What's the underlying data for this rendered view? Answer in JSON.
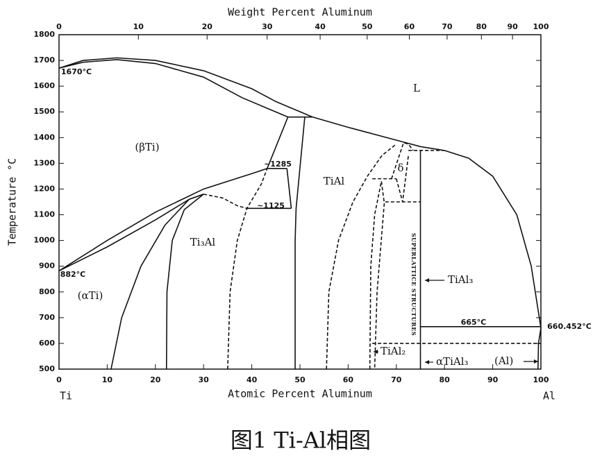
{
  "chart_data": {
    "type": "line",
    "xlabel": "Atomic Percent Aluminum",
    "x2label": "Weight Percent Aluminum",
    "ylabel": "Temperature °C",
    "caption": "图1 Ti-Al相图",
    "left_label": "Ti",
    "right_label": "Al",
    "color": "#111111",
    "xlim": [
      0,
      100
    ],
    "ylim": [
      500,
      1800
    ],
    "xticks": [
      0,
      10,
      20,
      30,
      40,
      50,
      60,
      70,
      80,
      90,
      100
    ],
    "yticks": [
      500,
      600,
      700,
      800,
      900,
      1000,
      1100,
      1200,
      1300,
      1400,
      1500,
      1600,
      1700,
      1800
    ],
    "x2ticks": [
      {
        "value": 0,
        "label": "0"
      },
      {
        "value": 16.47,
        "label": "10"
      },
      {
        "value": 30.73,
        "label": "20"
      },
      {
        "value": 43.19,
        "label": "30"
      },
      {
        "value": 54.19,
        "label": "40"
      },
      {
        "value": 63.95,
        "label": "50"
      },
      {
        "value": 72.69,
        "label": "60"
      },
      {
        "value": 80.54,
        "label": "70"
      },
      {
        "value": 87.65,
        "label": "80"
      },
      {
        "value": 94.11,
        "label": "90"
      },
      {
        "value": 100,
        "label": "100"
      }
    ],
    "annotations": [
      "L",
      "(βTi)",
      "Ti₃Al",
      "TiAl",
      "(αTi)",
      "1670°C",
      "882°C",
      "~1285",
      "~1125",
      "δ",
      "SUPERLATTICE STRUCTURES",
      "TiAl₃",
      "665°C",
      "660.452°C",
      "TiAl₂",
      "αTiAl₃",
      "(Al)"
    ],
    "series": [
      {
        "x": [
          0,
          5,
          12,
          20,
          30,
          40,
          45,
          52.6
        ],
        "values": [
          1670,
          1700,
          1710,
          1700,
          1660,
          1590,
          1540,
          1480
        ],
        "dash": false
      },
      {
        "x": [
          0,
          5,
          12,
          20,
          30,
          38,
          47.5
        ],
        "values": [
          1670,
          1693,
          1703,
          1688,
          1635,
          1555,
          1480
        ],
        "dash": false
      },
      {
        "x": [
          52.6,
          60,
          70,
          75,
          80,
          85,
          90,
          95,
          98,
          100
        ],
        "values": [
          1480,
          1440,
          1390,
          1365,
          1350,
          1320,
          1250,
          1100,
          900,
          660
        ],
        "dash": false
      },
      {
        "x": [
          47.5,
          52.6
        ],
        "values": [
          1480,
          1480
        ],
        "dash": false
      },
      {
        "x": [
          0,
          10,
          20,
          30,
          40,
          43.2
        ],
        "values": [
          882,
          1000,
          1110,
          1200,
          1260,
          1280
        ],
        "dash": false
      },
      {
        "x": [
          0,
          10,
          20,
          27,
          30
        ],
        "values": [
          882,
          975,
          1080,
          1160,
          1180
        ],
        "dash": false
      },
      {
        "x": [
          43.2,
          47.5
        ],
        "values": [
          1280,
          1480
        ],
        "dash": false
      },
      {
        "x": [
          43.2,
          47.3
        ],
        "values": [
          1280,
          1280
        ],
        "dash": false
      },
      {
        "x": [
          49,
          49,
          49.2,
          51
        ],
        "values": [
          500,
          1000,
          1125,
          1480
        ],
        "dash": false
      },
      {
        "x": [
          39,
          48.2
        ],
        "values": [
          1125,
          1125
        ],
        "dash": false
      },
      {
        "x": [
          48.2,
          47.3
        ],
        "values": [
          1125,
          1280
        ],
        "dash": false
      },
      {
        "x": [
          10.8,
          13,
          17,
          22,
          27,
          30
        ],
        "values": [
          500,
          700,
          900,
          1060,
          1160,
          1180
        ],
        "dash": false
      },
      {
        "x": [
          22.3,
          22.4,
          23.5,
          26,
          30
        ],
        "values": [
          500,
          800,
          1000,
          1120,
          1180
        ],
        "dash": false
      },
      {
        "x": [
          30,
          34,
          37,
          39
        ],
        "values": [
          1180,
          1165,
          1135,
          1125
        ],
        "dash": true
      },
      {
        "x": [
          35,
          35.5,
          37,
          39,
          42,
          43.2
        ],
        "values": [
          500,
          800,
          1000,
          1125,
          1220,
          1280
        ],
        "dash": true
      },
      {
        "x": [
          55.5,
          56,
          58,
          61,
          64,
          67,
          70
        ],
        "values": [
          500,
          800,
          1000,
          1150,
          1250,
          1330,
          1375
        ],
        "dash": true
      },
      {
        "x": [
          64.5,
          64.7,
          65.5,
          66.9
        ],
        "values": [
          500,
          900,
          1100,
          1230
        ],
        "dash": true
      },
      {
        "x": [
          66.9,
          67.5,
          66,
          65.5
        ],
        "values": [
          1230,
          1145,
          800,
          500
        ],
        "dash": true
      },
      {
        "x": [
          65,
          70
        ],
        "values": [
          1240,
          1240
        ],
        "dash": true
      },
      {
        "x": [
          69,
          71.5,
          72.5,
          73.5
        ],
        "values": [
          1240,
          1380,
          1375,
          1350
        ],
        "dash": true
      },
      {
        "x": [
          70,
          71.3,
          72.5
        ],
        "values": [
          1240,
          1150,
          1330
        ],
        "dash": true
      },
      {
        "x": [
          67.7,
          75
        ],
        "values": [
          1150,
          1150
        ],
        "dash": true
      },
      {
        "x": [
          72.5,
          80
        ],
        "values": [
          1350,
          1350
        ],
        "dash": true
      },
      {
        "x": [
          75,
          75
        ],
        "values": [
          500,
          1350
        ],
        "dash": false
      },
      {
        "x": [
          75,
          100
        ],
        "values": [
          665,
          665
        ],
        "dash": false
      },
      {
        "x": [
          65,
          100
        ],
        "values": [
          600,
          600
        ],
        "dash": true
      },
      {
        "x": [
          99.4,
          99.5,
          100
        ],
        "values": [
          500,
          600,
          660
        ],
        "dash": false
      }
    ]
  }
}
